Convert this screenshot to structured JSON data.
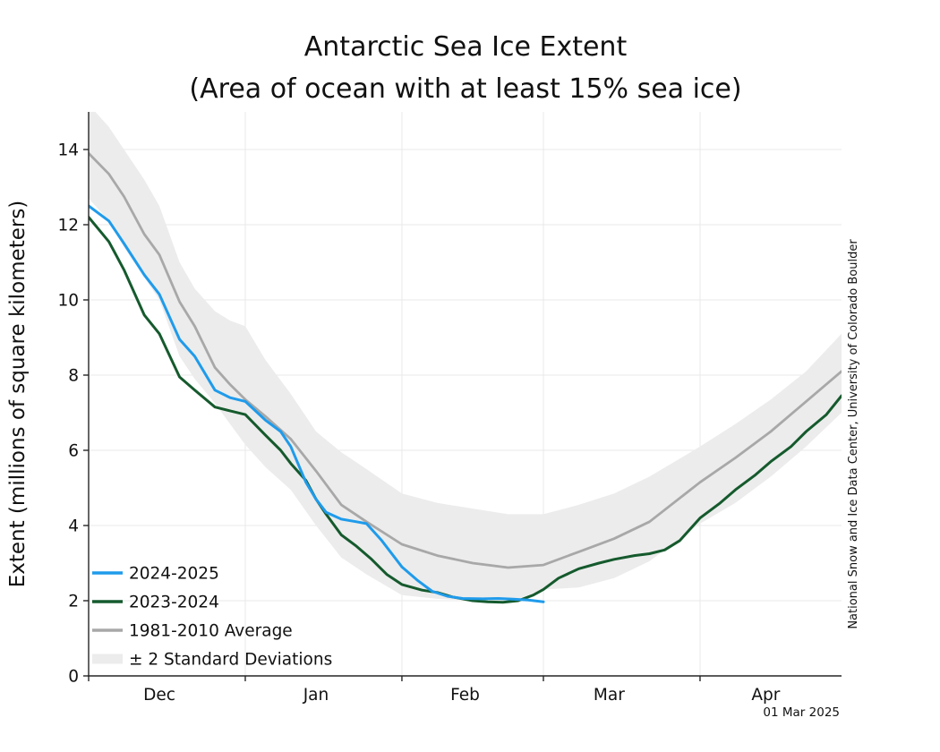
{
  "title": "Antarctic Sea Ice Extent",
  "subtitle": "(Area of ocean with at least 15% sea ice)",
  "y_axis_label": "Extent (millions of square kilometers)",
  "credit": "National Snow and Ice Data Center, University of Colorado Boulder",
  "date_stamp": "01 Mar 2025",
  "colors": {
    "current_season": "#1f9beb",
    "previous_season": "#155a2d",
    "average": "#a8a8a8",
    "band": "#ececec",
    "axis": "#262626",
    "grid": "#e9e9e9",
    "text": "#111111"
  },
  "legend": [
    {
      "label": "2024-2025",
      "color": "#1f9beb",
      "type": "line"
    },
    {
      "label": "2023-2024",
      "color": "#155a2d",
      "type": "line"
    },
    {
      "label": "1981-2010 Average",
      "color": "#a8a8a8",
      "type": "line"
    },
    {
      "label": "± 2 Standard Deviations",
      "color": "#ececec",
      "type": "band"
    }
  ],
  "chart_data": {
    "type": "line",
    "title": "Antarctic Sea Ice Extent",
    "xlabel": "",
    "ylabel": "Extent (millions of square kilometers)",
    "x_unit": "days since 1 Dec",
    "x_range": [
      0,
      149
    ],
    "ylim": [
      0,
      15
    ],
    "y_ticks": [
      0,
      2,
      4,
      6,
      8,
      10,
      12,
      14
    ],
    "grid": true,
    "legend_position": "lower left",
    "months": [
      {
        "label": "Dec",
        "tick_day": 0,
        "label_day": 14
      },
      {
        "label": "Jan",
        "tick_day": 31,
        "label_day": 45
      },
      {
        "label": "Feb",
        "tick_day": 62,
        "label_day": 74.5
      },
      {
        "label": "Mar",
        "tick_day": 90,
        "label_day": 103
      },
      {
        "label": "Apr",
        "tick_day": 121,
        "label_day": 134
      }
    ],
    "series": [
      {
        "name": "1981-2010 Average",
        "color": "#a8a8a8",
        "width": 2.8,
        "x": [
          0,
          4,
          7,
          11,
          14,
          18,
          21,
          25,
          28,
          31,
          35,
          40,
          45,
          50,
          55,
          62,
          69,
          76,
          83,
          90,
          97,
          104,
          111,
          121,
          128,
          135,
          142,
          149
        ],
        "values": [
          13.9,
          13.35,
          12.75,
          11.75,
          11.2,
          9.95,
          9.3,
          8.2,
          7.75,
          7.35,
          6.9,
          6.3,
          5.45,
          4.55,
          4.1,
          3.5,
          3.2,
          3.0,
          2.88,
          2.95,
          3.3,
          3.65,
          4.1,
          5.15,
          5.8,
          6.5,
          7.3,
          8.1
        ]
      },
      {
        "name": "2023-2024",
        "color": "#155a2d",
        "width": 3,
        "x": [
          0,
          4,
          7,
          11,
          14,
          18,
          21,
          25,
          28,
          31,
          35,
          38,
          40,
          43,
          45,
          47,
          50,
          53,
          56,
          59,
          62,
          66,
          69,
          72,
          76,
          79,
          82,
          85,
          88,
          90,
          93,
          97,
          101,
          104,
          108,
          111,
          114,
          117,
          121,
          125,
          128,
          132,
          135,
          139,
          142,
          146,
          149
        ],
        "values": [
          12.2,
          11.55,
          10.8,
          9.6,
          9.1,
          7.95,
          7.6,
          7.15,
          7.05,
          6.95,
          6.4,
          6.0,
          5.65,
          5.2,
          4.7,
          4.3,
          3.75,
          3.45,
          3.1,
          2.7,
          2.43,
          2.28,
          2.22,
          2.1,
          2.0,
          1.97,
          1.96,
          2.0,
          2.15,
          2.3,
          2.6,
          2.85,
          3.0,
          3.1,
          3.2,
          3.25,
          3.35,
          3.6,
          4.2,
          4.6,
          4.95,
          5.35,
          5.7,
          6.1,
          6.5,
          6.95,
          7.45
        ]
      },
      {
        "name": "2024-2025",
        "color": "#1f9beb",
        "width": 3,
        "x": [
          0,
          4,
          7,
          11,
          14,
          18,
          21,
          25,
          28,
          31,
          35,
          38,
          40,
          43,
          45,
          47,
          50,
          53,
          55,
          58,
          62,
          65,
          68,
          71,
          74,
          78,
          81,
          84,
          87,
          90
        ],
        "values": [
          12.5,
          12.1,
          11.5,
          10.67,
          10.15,
          8.95,
          8.5,
          7.6,
          7.4,
          7.3,
          6.8,
          6.5,
          6.1,
          5.15,
          4.7,
          4.35,
          4.17,
          4.1,
          4.05,
          3.6,
          2.9,
          2.55,
          2.25,
          2.12,
          2.06,
          2.05,
          2.06,
          2.04,
          2.02,
          1.97
        ]
      }
    ],
    "band": {
      "name": "± 2 Standard Deviations",
      "color": "#ececec",
      "x": [
        0,
        4,
        7,
        11,
        14,
        18,
        21,
        25,
        28,
        31,
        35,
        40,
        45,
        50,
        55,
        62,
        69,
        76,
        83,
        90,
        97,
        104,
        111,
        121,
        128,
        135,
        142,
        149
      ],
      "upper": [
        15.2,
        14.6,
        14.0,
        13.2,
        12.5,
        11.0,
        10.3,
        9.7,
        9.45,
        9.3,
        8.4,
        7.5,
        6.5,
        5.95,
        5.5,
        4.85,
        4.6,
        4.45,
        4.3,
        4.3,
        4.55,
        4.85,
        5.3,
        6.1,
        6.7,
        7.35,
        8.1,
        9.1
      ],
      "lower": [
        12.7,
        12.1,
        11.4,
        10.6,
        10.0,
        8.5,
        7.9,
        7.25,
        6.7,
        6.15,
        5.55,
        4.95,
        4.0,
        3.15,
        2.7,
        2.15,
        2.05,
        2.0,
        1.95,
        2.3,
        2.35,
        2.6,
        3.05,
        4.05,
        4.6,
        5.3,
        6.1,
        7.0
      ]
    }
  }
}
